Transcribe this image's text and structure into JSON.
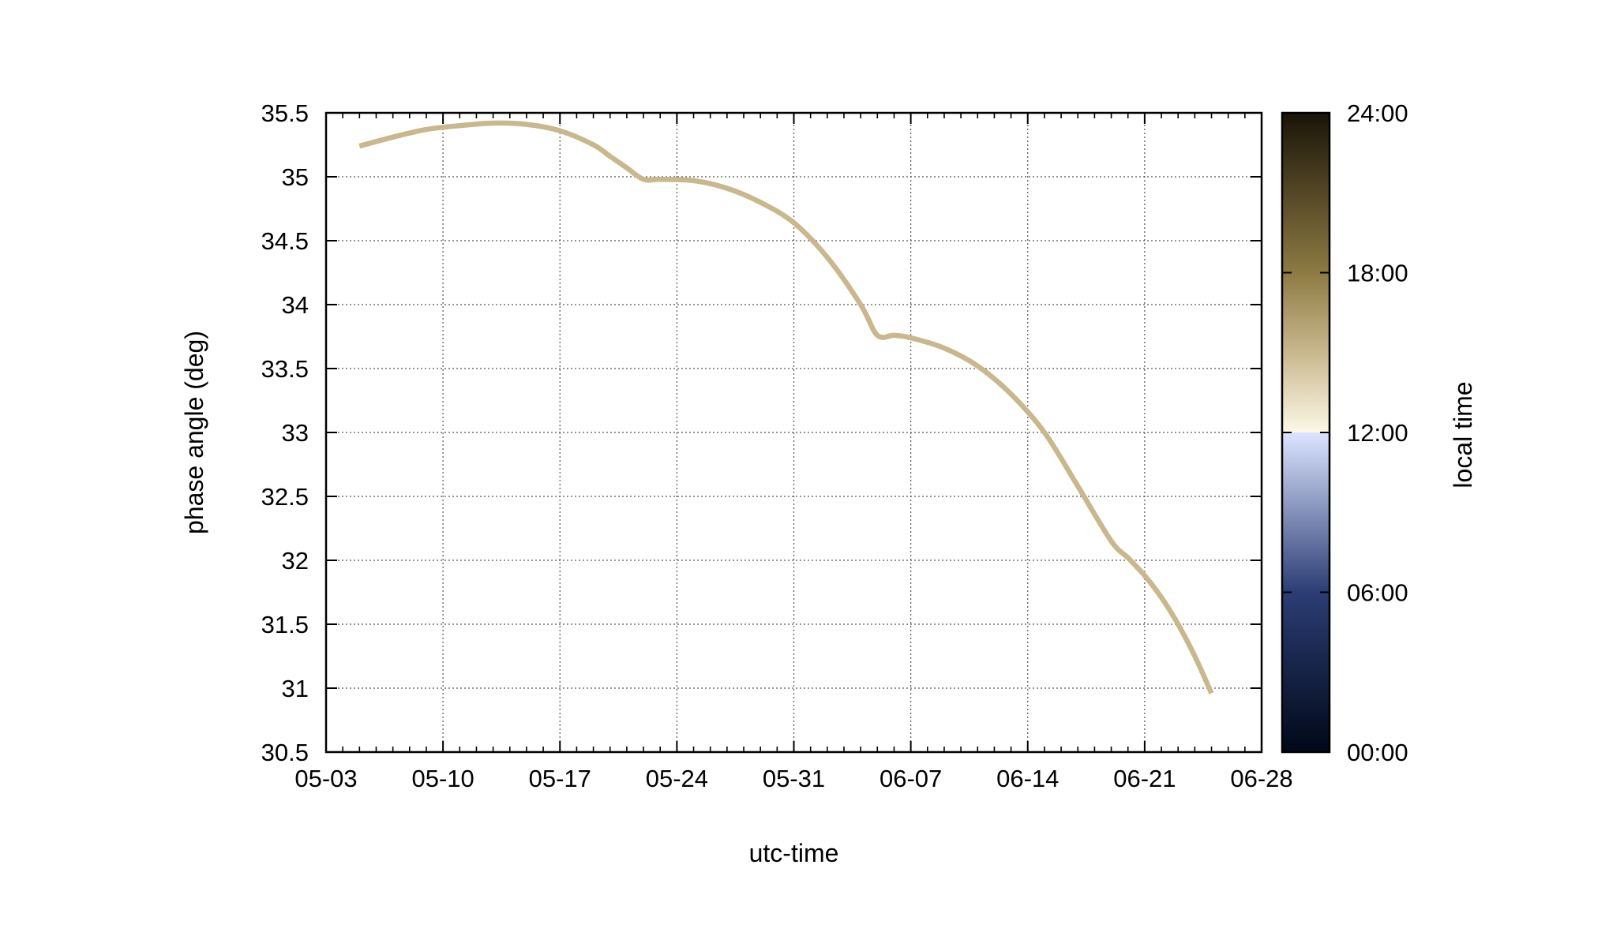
{
  "chart_data": {
    "type": "line",
    "title": "",
    "xlabel": "utc-time",
    "ylabel": "phase angle (deg)",
    "x_tick_labels": [
      "05-03",
      "05-10",
      "05-17",
      "05-24",
      "05-31",
      "06-07",
      "06-14",
      "06-21",
      "06-28"
    ],
    "x_ticks": [
      "05-03",
      "05-10",
      "05-17",
      "05-24",
      "05-31",
      "06-07",
      "06-14",
      "06-21",
      "06-28"
    ],
    "xlim": [
      "05-03",
      "06-28"
    ],
    "y_tick_labels": [
      "30.5",
      "31",
      "31.5",
      "32",
      "32.5",
      "33",
      "33.5",
      "34",
      "34.5",
      "35",
      "35.5"
    ],
    "ylim": [
      30.5,
      35.5
    ],
    "grid": true,
    "series": [
      {
        "color": "#c9b88e",
        "x": [
          "05-05",
          "05-07",
          "05-09",
          "05-11",
          "05-13",
          "05-15",
          "05-17",
          "05-19",
          "05-20",
          "05-21",
          "05-22",
          "05-23",
          "05-25",
          "05-27",
          "05-29",
          "05-31",
          "06-02",
          "06-04",
          "06-05",
          "06-06",
          "06-07",
          "06-09",
          "06-11",
          "06-13",
          "06-15",
          "06-17",
          "06-19",
          "06-20",
          "06-21",
          "06-22",
          "06-23",
          "06-24",
          "06-25"
        ],
        "y": [
          35.24,
          35.31,
          35.37,
          35.4,
          35.42,
          35.41,
          35.36,
          35.25,
          35.16,
          35.07,
          34.98,
          34.98,
          34.97,
          34.91,
          34.8,
          34.64,
          34.37,
          34.0,
          33.76,
          33.76,
          33.74,
          33.66,
          33.52,
          33.3,
          33.0,
          32.58,
          32.15,
          32.02,
          31.88,
          31.71,
          31.5,
          31.25,
          30.96
        ]
      }
    ],
    "colorbar": {
      "label": "local time",
      "tick_labels": [
        "00:00",
        "06:00",
        "12:00",
        "18:00",
        "24:00"
      ],
      "range": [
        0,
        24
      ],
      "colors": [
        {
          "at": 0,
          "color": "#000818"
        },
        {
          "at": 6,
          "color": "#2b3d74"
        },
        {
          "at": 12,
          "color": "#dce4ff"
        },
        {
          "at": 12.01,
          "color": "#fcf8e6"
        },
        {
          "at": 15,
          "color": "#c9b88e"
        },
        {
          "at": 18,
          "color": "#8d7a43"
        },
        {
          "at": 24,
          "color": "#1a1408"
        }
      ]
    }
  }
}
